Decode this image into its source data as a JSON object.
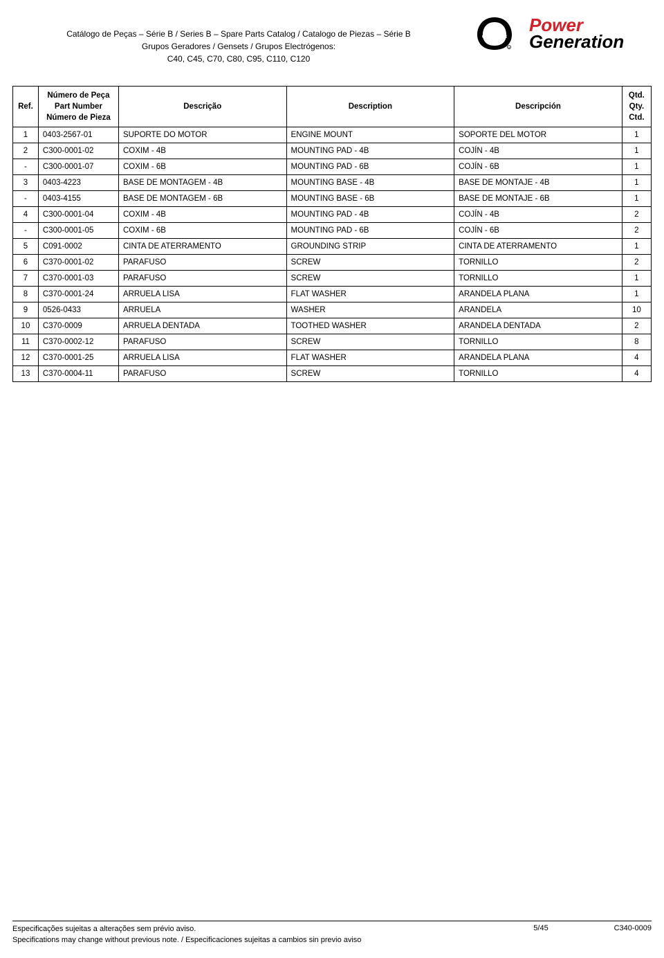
{
  "header": {
    "line1": "Catálogo de Peças – Série B / Series B – Spare Parts Catalog / Catalogo de Piezas – Série B",
    "line2": "Grupos Geradores / Gensets / Grupos Electrógenos:",
    "line3": "C40, C45, C70, C80, C95, C110, C120",
    "logo_brand_power": "Power",
    "logo_brand_gen": "Generation",
    "logo_bg_color": "#ffffff",
    "logo_power_color": "#d32029",
    "logo_gen_color": "#000000",
    "cummins_color": "#000000"
  },
  "table": {
    "columns": {
      "ref": "Ref.",
      "part_l1": "Número de Peça",
      "part_l2": "Part Number",
      "part_l3": "Número de Pieza",
      "desc_pt": "Descrição",
      "desc_en": "Description",
      "desc_es": "Descripción",
      "qty_l1": "Qtd.",
      "qty_l2": "Qty.",
      "qty_l3": "Ctd."
    },
    "header_fontsize": 11.5,
    "body_fontsize": 11.5,
    "border_color": "#000000",
    "background_color": "#ffffff",
    "col_widths": {
      "ref": 35,
      "part": 110,
      "desc": 230,
      "qty": 40
    },
    "rows": [
      {
        "ref": "1",
        "part": "0403-2567-01",
        "pt": "SUPORTE DO MOTOR",
        "en": "ENGINE MOUNT",
        "es": "SOPORTE DEL MOTOR",
        "qty": "1"
      },
      {
        "ref": "2",
        "part": "C300-0001-02",
        "pt": "COXIM - 4B",
        "en": "MOUNTING PAD - 4B",
        "es": "COJÍN - 4B",
        "qty": "1"
      },
      {
        "ref": "-",
        "part": "C300-0001-07",
        "pt": "COXIM - 6B",
        "en": "MOUNTING PAD - 6B",
        "es": "COJÍN - 6B",
        "qty": "1"
      },
      {
        "ref": "3",
        "part": "0403-4223",
        "pt": "BASE DE MONTAGEM - 4B",
        "en": "MOUNTING BASE - 4B",
        "es": "BASE DE MONTAJE - 4B",
        "qty": "1"
      },
      {
        "ref": "-",
        "part": "0403-4155",
        "pt": "BASE DE MONTAGEM - 6B",
        "en": "MOUNTING BASE - 6B",
        "es": "BASE DE MONTAJE - 6B",
        "qty": "1"
      },
      {
        "ref": "4",
        "part": "C300-0001-04",
        "pt": "COXIM - 4B",
        "en": "MOUNTING PAD - 4B",
        "es": "COJÍN - 4B",
        "qty": "2"
      },
      {
        "ref": "-",
        "part": "C300-0001-05",
        "pt": "COXIM - 6B",
        "en": "MOUNTING PAD - 6B",
        "es": "COJÍN - 6B",
        "qty": "2"
      },
      {
        "ref": "5",
        "part": "C091-0002",
        "pt": "CINTA DE ATERRAMENTO",
        "en": "GROUNDING STRIP",
        "es": "CINTA DE ATERRAMENTO",
        "qty": "1"
      },
      {
        "ref": "6",
        "part": "C370-0001-02",
        "pt": "PARAFUSO",
        "en": "SCREW",
        "es": "TORNILLO",
        "qty": "2"
      },
      {
        "ref": "7",
        "part": "C370-0001-03",
        "pt": "PARAFUSO",
        "en": "SCREW",
        "es": "TORNILLO",
        "qty": "1"
      },
      {
        "ref": "8",
        "part": "C370-0001-24",
        "pt": "ARRUELA LISA",
        "en": "FLAT WASHER",
        "es": "ARANDELA PLANA",
        "qty": "1"
      },
      {
        "ref": "9",
        "part": "0526-0433",
        "pt": "ARRUELA",
        "en": "WASHER",
        "es": "ARANDELA",
        "qty": "10"
      },
      {
        "ref": "10",
        "part": "C370-0009",
        "pt": "ARRUELA DENTADA",
        "en": "TOOTHED WASHER",
        "es": "ARANDELA DENTADA",
        "qty": "2"
      },
      {
        "ref": "11",
        "part": "C370-0002-12",
        "pt": "PARAFUSO",
        "en": "SCREW",
        "es": "TORNILLO",
        "qty": "8"
      },
      {
        "ref": "12",
        "part": "C370-0001-25",
        "pt": "ARRUELA LISA",
        "en": "FLAT WASHER",
        "es": "ARANDELA PLANA",
        "qty": "4"
      },
      {
        "ref": "13",
        "part": "C370-0004-11",
        "pt": "PARAFUSO",
        "en": "SCREW",
        "es": "TORNILLO",
        "qty": "4"
      }
    ]
  },
  "footer": {
    "left_l1": "Especificações sujeitas a alterações sem prévio aviso.",
    "left_l2": "Specifications may change without previous note. / Especificaciones sujeitas a cambios sin previo aviso",
    "center": "5/45",
    "right": "C340-0009"
  }
}
